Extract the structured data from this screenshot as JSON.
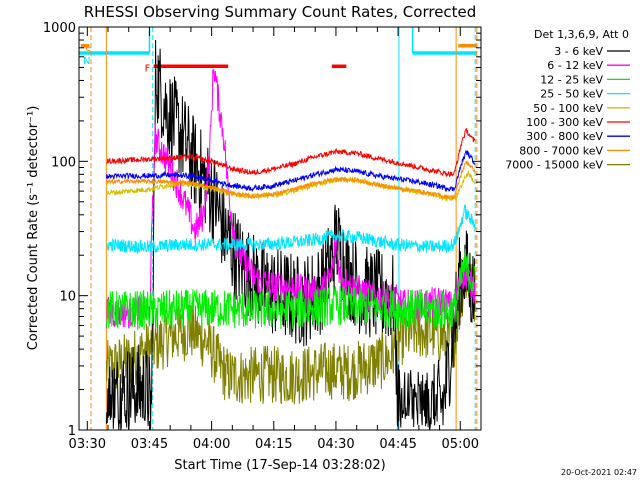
{
  "chart_data": {
    "type": "line",
    "title": "RHESSI Observing Summary Count Rates, Corrected",
    "xlabel": "Start Time (17-Sep-14 03:28:02)",
    "ylabel": "Corrected Count Rate (s⁻¹ detector⁻¹)",
    "x_unit": "minutes after 03:28:02",
    "xlim": [
      0,
      97
    ],
    "ylim": [
      1,
      1000
    ],
    "yscale": "log",
    "xticks": [
      {
        "t": 2,
        "label": "03:30"
      },
      {
        "t": 17,
        "label": "03:45"
      },
      {
        "t": 32,
        "label": "04:00"
      },
      {
        "t": 47,
        "label": "04:15"
      },
      {
        "t": 62,
        "label": "04:30"
      },
      {
        "t": 77,
        "label": "04:45"
      },
      {
        "t": 92,
        "label": "05:00"
      }
    ],
    "yticks": [
      {
        "v": 1,
        "label": "1"
      },
      {
        "v": 10,
        "label": "10"
      },
      {
        "v": 100,
        "label": "100"
      },
      {
        "v": 1000,
        "label": "1000"
      }
    ],
    "legend_title": "Det 1,3,6,9, Att 0",
    "legend_position": "right, outside plot",
    "footer": "20-Oct-2021 02:47",
    "bands": [
      {
        "label": "S",
        "color": "#ff8c00",
        "level": 725,
        "segments": [
          [
            0.5,
            2.5
          ],
          [
            91.5,
            96
          ]
        ]
      },
      {
        "label": "N",
        "color": "#00e5ff",
        "level": 640,
        "segments": [
          [
            0,
            17
          ],
          [
            80.5,
            96
          ]
        ]
      },
      {
        "label": "F",
        "color": "#ff0000",
        "level": 510,
        "segments": [
          [
            18,
            36
          ],
          [
            61,
            64.5
          ]
        ]
      }
    ],
    "vlines": [
      {
        "t": 2.9,
        "color": "#ff8c00",
        "dashed": true
      },
      {
        "t": 6.6,
        "color": "#ff8c00",
        "dashed": false
      },
      {
        "t": 17.8,
        "color": "#00e5ff",
        "dashed": true
      },
      {
        "t": 77.2,
        "color": "#00e5ff",
        "dashed": false
      },
      {
        "t": 91.0,
        "color": "#ff8c00",
        "dashed": false
      },
      {
        "t": 95.6,
        "color": "#00e5ff",
        "dashed": true
      },
      {
        "t": 96.0,
        "color": "#ff8c00",
        "dashed": true
      }
    ],
    "series": [
      {
        "name": "3 - 6 keV",
        "color": "#000000",
        "noise": 0.35,
        "t_range": [
          6.6,
          95.6
        ],
        "points": [
          [
            6.6,
            1.5
          ],
          [
            12,
            2
          ],
          [
            16,
            2
          ],
          [
            17.5,
            1.5
          ],
          [
            18.5,
            450
          ],
          [
            21,
            250
          ],
          [
            24,
            170
          ],
          [
            26,
            130
          ],
          [
            28,
            95
          ],
          [
            30,
            75
          ],
          [
            33,
            50
          ],
          [
            35,
            30
          ],
          [
            37,
            22
          ],
          [
            40,
            16
          ],
          [
            43,
            12.5
          ],
          [
            46,
            11
          ],
          [
            50,
            10
          ],
          [
            54,
            9
          ],
          [
            58,
            11
          ],
          [
            61,
            18
          ],
          [
            62,
            26
          ],
          [
            63.5,
            20
          ],
          [
            65,
            15
          ],
          [
            68,
            11
          ],
          [
            72,
            10
          ],
          [
            76,
            9.5
          ],
          [
            77,
            1.5
          ],
          [
            80,
            1.5
          ],
          [
            84,
            1.3
          ],
          [
            88,
            1.6
          ],
          [
            90.8,
            7
          ],
          [
            92,
            14
          ],
          [
            93,
            16
          ],
          [
            95,
            11
          ],
          [
            95.6,
            10
          ]
        ]
      },
      {
        "name": "6 - 12 keV",
        "color": "#ff00ff",
        "noise": 0.12,
        "t_range": [
          6.6,
          95.6
        ],
        "points": [
          [
            6.6,
            7.5
          ],
          [
            17,
            7.5
          ],
          [
            18.3,
            150
          ],
          [
            20,
            120
          ],
          [
            22,
            90
          ],
          [
            24,
            65
          ],
          [
            26,
            45
          ],
          [
            28,
            30
          ],
          [
            30,
            40
          ],
          [
            31.5,
            110
          ],
          [
            32.5,
            530
          ],
          [
            33.5,
            300
          ],
          [
            35,
            150
          ],
          [
            36,
            60
          ],
          [
            38,
            22
          ],
          [
            42,
            14
          ],
          [
            46,
            12
          ],
          [
            50,
            11.5
          ],
          [
            54,
            11
          ],
          [
            58,
            10.5
          ],
          [
            61,
            14
          ],
          [
            62,
            26
          ],
          [
            63,
            14
          ],
          [
            66,
            11.5
          ],
          [
            70,
            10
          ],
          [
            76,
            9.5
          ],
          [
            78,
            8.5
          ],
          [
            82,
            8.5
          ],
          [
            88,
            9
          ],
          [
            90.5,
            8
          ],
          [
            92,
            13.5
          ],
          [
            93,
            15
          ],
          [
            95.6,
            11
          ]
        ]
      },
      {
        "name": "12 - 25 keV",
        "color": "#00ee00",
        "noise": 0.15,
        "t_range": [
          6.6,
          95.6
        ],
        "points": [
          [
            6.6,
            7.8
          ],
          [
            20,
            7.8
          ],
          [
            30,
            8
          ],
          [
            35,
            8
          ],
          [
            45,
            7.8
          ],
          [
            55,
            8
          ],
          [
            62,
            8.5
          ],
          [
            70,
            8.2
          ],
          [
            78,
            8
          ],
          [
            86,
            7.8
          ],
          [
            90.5,
            7.8
          ],
          [
            92,
            12
          ],
          [
            93,
            17
          ],
          [
            95.6,
            12
          ]
        ]
      },
      {
        "name": "25 - 50 keV",
        "color": "#00e5ff",
        "noise": 0.05,
        "t_range": [
          6.6,
          95.6
        ],
        "points": [
          [
            6.6,
            24
          ],
          [
            17,
            23
          ],
          [
            25,
            24
          ],
          [
            35,
            24
          ],
          [
            45,
            24
          ],
          [
            55,
            25.5
          ],
          [
            62,
            28
          ],
          [
            68,
            27
          ],
          [
            76,
            24
          ],
          [
            86,
            23
          ],
          [
            90.5,
            24
          ],
          [
            92,
            33
          ],
          [
            93,
            43
          ],
          [
            95.6,
            33
          ]
        ]
      },
      {
        "name": "50 - 100 keV",
        "color": "#d4c000",
        "noise": 0.02,
        "t_range": [
          6.6,
          95.6
        ],
        "points": [
          [
            6.6,
            58
          ],
          [
            12,
            60
          ],
          [
            17,
            62
          ],
          [
            22,
            67
          ],
          [
            27,
            68
          ],
          [
            32,
            62
          ],
          [
            37,
            57
          ],
          [
            42,
            55
          ],
          [
            48,
            57
          ],
          [
            53,
            62
          ],
          [
            58,
            68
          ],
          [
            63,
            74
          ],
          [
            68,
            72
          ],
          [
            73,
            66
          ],
          [
            78,
            62
          ],
          [
            84,
            58
          ],
          [
            89,
            53
          ],
          [
            91,
            54
          ],
          [
            93,
            75
          ],
          [
            94,
            82
          ],
          [
            95.6,
            68
          ]
        ]
      },
      {
        "name": "100 - 300 keV",
        "color": "#ff0000",
        "noise": 0.02,
        "t_range": [
          6.6,
          95.6
        ],
        "points": [
          [
            6.6,
            100
          ],
          [
            12,
            102
          ],
          [
            17,
            104
          ],
          [
            22,
            106
          ],
          [
            27,
            108
          ],
          [
            32,
            100
          ],
          [
            37,
            88
          ],
          [
            42,
            82
          ],
          [
            47,
            88
          ],
          [
            52,
            96
          ],
          [
            57,
            108
          ],
          [
            62,
            118
          ],
          [
            67,
            115
          ],
          [
            72,
            105
          ],
          [
            77,
            98
          ],
          [
            82,
            90
          ],
          [
            88,
            82
          ],
          [
            90.5,
            80
          ],
          [
            92.5,
            145
          ],
          [
            93.5,
            170
          ],
          [
            95,
            145
          ],
          [
            95.6,
            140
          ]
        ]
      },
      {
        "name": "300 - 800 keV",
        "color": "#0000ff",
        "noise": 0.02,
        "t_range": [
          6.6,
          95.6
        ],
        "points": [
          [
            6.6,
            77
          ],
          [
            12,
            78
          ],
          [
            17,
            78
          ],
          [
            22,
            79
          ],
          [
            27,
            78
          ],
          [
            32,
            72
          ],
          [
            37,
            66
          ],
          [
            42,
            63
          ],
          [
            47,
            66
          ],
          [
            52,
            72
          ],
          [
            57,
            80
          ],
          [
            62,
            87
          ],
          [
            67,
            84
          ],
          [
            72,
            78
          ],
          [
            77,
            74
          ],
          [
            82,
            70
          ],
          [
            88,
            64
          ],
          [
            90.5,
            62
          ],
          [
            92.5,
            100
          ],
          [
            93.5,
            118
          ],
          [
            95,
            102
          ],
          [
            95.6,
            98
          ]
        ]
      },
      {
        "name": "800 - 7000 keV",
        "color": "#ff8c00",
        "noise": 0.015,
        "t_range": [
          6.6,
          95.6
        ],
        "points": [
          [
            6.6,
            70
          ],
          [
            12,
            71
          ],
          [
            17,
            71
          ],
          [
            22,
            70
          ],
          [
            27,
            69
          ],
          [
            32,
            64
          ],
          [
            37,
            58
          ],
          [
            42,
            55
          ],
          [
            47,
            57
          ],
          [
            52,
            62
          ],
          [
            57,
            69
          ],
          [
            62,
            74
          ],
          [
            67,
            72
          ],
          [
            72,
            67
          ],
          [
            77,
            63
          ],
          [
            82,
            60
          ],
          [
            88,
            55
          ],
          [
            90.5,
            54
          ],
          [
            92.5,
            85
          ],
          [
            93.5,
            100
          ],
          [
            95,
            88
          ],
          [
            95.6,
            85
          ]
        ]
      },
      {
        "name": "7000 - 15000 keV",
        "color": "#808000",
        "noise": 0.22,
        "t_range": [
          6.6,
          95.6
        ],
        "points": [
          [
            6.6,
            2.8
          ],
          [
            12,
            3.3
          ],
          [
            17,
            4
          ],
          [
            22,
            5
          ],
          [
            27,
            5.5
          ],
          [
            31,
            4.5
          ],
          [
            34,
            3
          ],
          [
            36,
            2.5
          ],
          [
            40,
            2.5
          ],
          [
            45,
            2.6
          ],
          [
            50,
            2.5
          ],
          [
            55,
            2.6
          ],
          [
            60,
            2.8
          ],
          [
            65,
            2.7
          ],
          [
            70,
            3
          ],
          [
            75,
            3.5
          ],
          [
            78,
            5
          ],
          [
            82,
            5.5
          ],
          [
            86,
            5.3
          ],
          [
            89,
            4.6
          ],
          [
            90.5,
            4.8
          ],
          [
            92,
            9
          ],
          [
            93,
            14
          ],
          [
            95.6,
            10
          ]
        ]
      }
    ]
  }
}
